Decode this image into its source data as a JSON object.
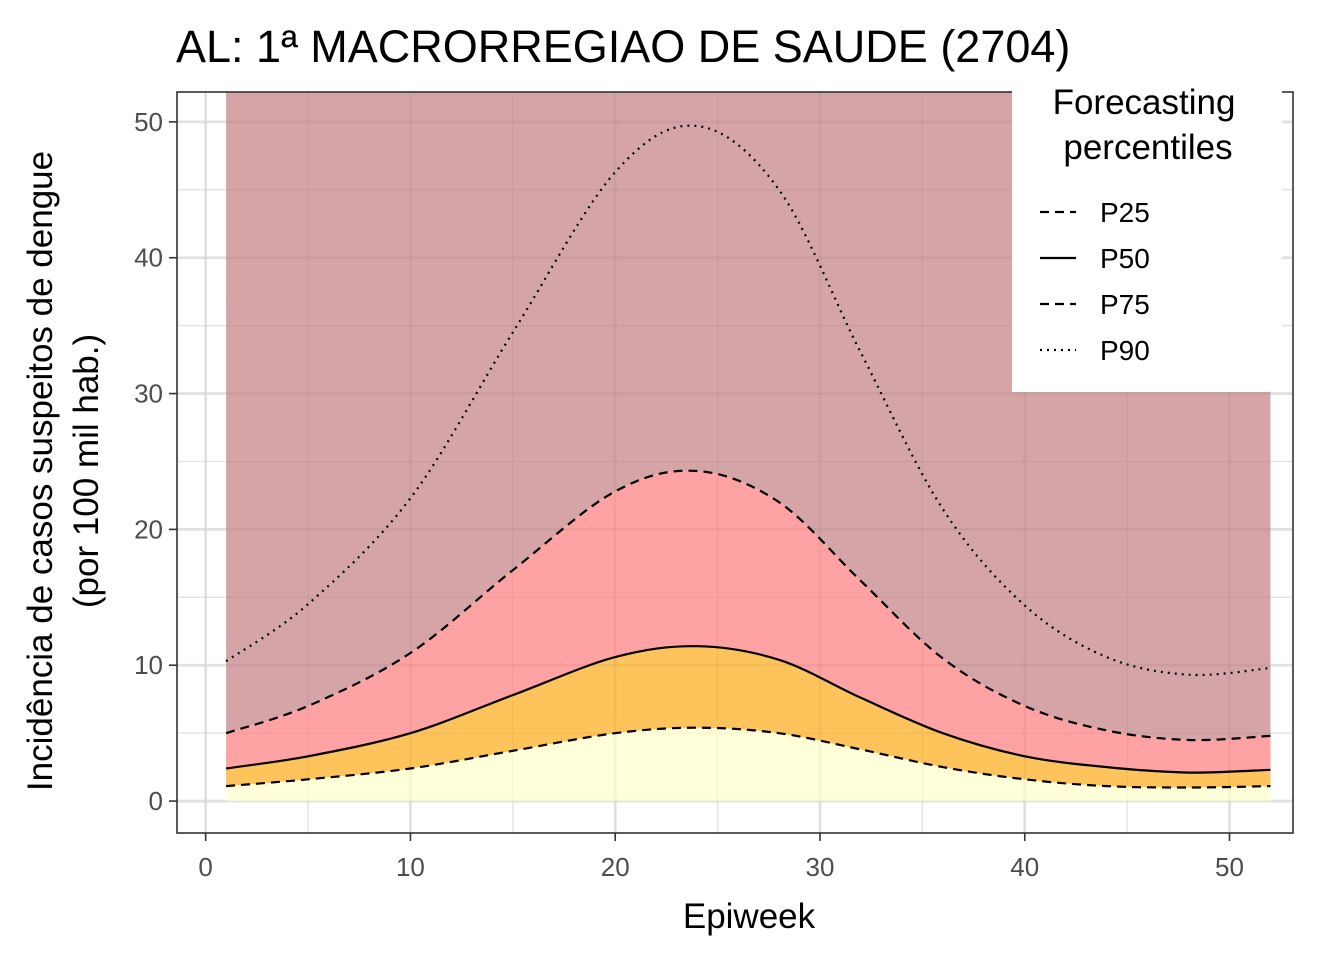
{
  "chart_data": {
    "type": "area",
    "title": "AL: 1ª MACRORREGIAO DE SAUDE (2704)",
    "xlabel": "Epiweek",
    "ylabel_line1": "Incidência de casos suspeitos de dengue",
    "ylabel_line2": "(por 100 mil hab.)",
    "xlim": [
      -1.4,
      53.1
    ],
    "ylim": [
      -2.35,
      52.2
    ],
    "x_ticks": [
      0,
      10,
      20,
      30,
      40,
      50
    ],
    "y_ticks": [
      0,
      10,
      20,
      30,
      40,
      50
    ],
    "x_minor_ticks": [
      5,
      15,
      25,
      35,
      45
    ],
    "y_minor_ticks": [
      5,
      15,
      25,
      35,
      45
    ],
    "grid": true,
    "x": [
      1,
      5,
      10,
      15,
      20,
      24,
      28,
      32,
      36,
      40,
      44,
      48,
      52
    ],
    "series": [
      {
        "name": "P25",
        "linestyle": "dashed",
        "values": [
          1.1,
          1.6,
          2.4,
          3.7,
          5.0,
          5.4,
          5.0,
          3.8,
          2.5,
          1.6,
          1.1,
          1.0,
          1.1
        ]
      },
      {
        "name": "P50",
        "linestyle": "solid",
        "values": [
          2.4,
          3.3,
          5.0,
          7.8,
          10.6,
          11.4,
          10.4,
          7.6,
          5.0,
          3.3,
          2.5,
          2.1,
          2.3
        ]
      },
      {
        "name": "P75",
        "linestyle": "dashed",
        "values": [
          5.0,
          7.0,
          10.9,
          17.0,
          22.8,
          24.3,
          22.0,
          16.2,
          10.5,
          7.0,
          5.2,
          4.5,
          4.8
        ]
      },
      {
        "name": "P90",
        "linestyle": "dotted",
        "values": [
          10.3,
          14.5,
          22.3,
          34.5,
          46.3,
          49.7,
          45.0,
          33.0,
          21.5,
          14.4,
          10.6,
          9.3,
          9.8
        ]
      }
    ],
    "band_colors": [
      "#ffffd9",
      "#fec35a",
      "#ffa2a3",
      "#d4a4a6"
    ],
    "panel_background": "#ffffff",
    "grid_color": "#ebebeb",
    "legend": {
      "title_line1": "Forecasting",
      "title_line2": "percentiles",
      "placement": "top-right",
      "entries": [
        "P25",
        "P50",
        "P75",
        "P90"
      ]
    }
  }
}
